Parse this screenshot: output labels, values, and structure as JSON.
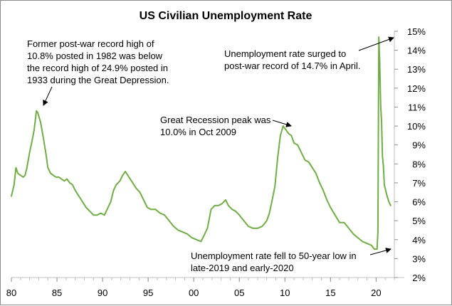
{
  "chart_data": {
    "type": "line",
    "title": "US Civilian Unemployment Rate",
    "xlabel": "",
    "ylabel": "",
    "xlim": [
      1980,
      2022
    ],
    "ylim": [
      2,
      15
    ],
    "x_ticks": [
      1980,
      1985,
      1990,
      1995,
      2000,
      2005,
      2010,
      2015,
      2020
    ],
    "x_tick_labels": [
      "80",
      "85",
      "90",
      "95",
      "00",
      "05",
      "10",
      "15",
      "20"
    ],
    "y_ticks": [
      2,
      3,
      4,
      5,
      6,
      7,
      8,
      9,
      10,
      11,
      12,
      13,
      14,
      15
    ],
    "y_tick_labels": [
      "2%",
      "3%",
      "4%",
      "5%",
      "6%",
      "7%",
      "8%",
      "9%",
      "10%",
      "11%",
      "12%",
      "13%",
      "14%",
      "15%"
    ],
    "grid": false,
    "line_color": "#70ad47",
    "series": [
      {
        "name": "Unemployment Rate",
        "x": [
          1980.0,
          1980.3,
          1980.5,
          1980.7,
          1981.0,
          1981.3,
          1981.5,
          1981.7,
          1982.0,
          1982.3,
          1982.5,
          1982.75,
          1982.9,
          1983.2,
          1983.5,
          1983.8,
          1984.0,
          1984.3,
          1984.6,
          1984.9,
          1985.2,
          1985.5,
          1985.8,
          1986.1,
          1986.4,
          1986.7,
          1987.0,
          1987.4,
          1987.8,
          1988.2,
          1988.6,
          1989.0,
          1989.4,
          1989.8,
          1990.2,
          1990.5,
          1990.9,
          1991.2,
          1991.5,
          1991.9,
          1992.2,
          1992.5,
          1992.9,
          1993.3,
          1993.7,
          1994.1,
          1994.5,
          1994.9,
          1995.3,
          1995.8,
          1996.3,
          1996.8,
          1997.3,
          1997.8,
          1998.3,
          1998.8,
          1999.3,
          1999.8,
          2000.3,
          2000.8,
          2001.2,
          2001.5,
          2001.9,
          2002.3,
          2002.7,
          2003.1,
          2003.5,
          2003.8,
          2004.2,
          2004.6,
          2005.0,
          2005.5,
          2006.0,
          2006.5,
          2007.0,
          2007.5,
          2008.0,
          2008.3,
          2008.6,
          2008.9,
          2009.2,
          2009.5,
          2009.8,
          2010.1,
          2010.4,
          2010.7,
          2011.0,
          2011.4,
          2011.8,
          2012.2,
          2012.6,
          2013.0,
          2013.4,
          2013.8,
          2014.2,
          2014.6,
          2015.0,
          2015.5,
          2016.0,
          2016.5,
          2017.0,
          2017.5,
          2018.0,
          2018.5,
          2019.0,
          2019.5,
          2019.8,
          2020.1,
          2020.2,
          2020.3,
          2020.4,
          2020.5,
          2020.6,
          2020.7,
          2020.8,
          2020.9,
          2021.0,
          2021.2,
          2021.4,
          2021.5,
          2021.6
        ],
        "values": [
          6.3,
          6.9,
          7.8,
          7.5,
          7.4,
          7.3,
          7.4,
          7.8,
          8.6,
          9.3,
          9.8,
          10.8,
          10.7,
          10.2,
          9.4,
          8.5,
          7.8,
          7.5,
          7.4,
          7.3,
          7.3,
          7.2,
          7.1,
          7.2,
          7.0,
          6.9,
          6.6,
          6.3,
          6.0,
          5.7,
          5.5,
          5.3,
          5.3,
          5.4,
          5.3,
          5.6,
          6.0,
          6.6,
          6.9,
          7.1,
          7.4,
          7.6,
          7.3,
          7.0,
          6.7,
          6.5,
          6.1,
          5.7,
          5.6,
          5.6,
          5.4,
          5.3,
          5.0,
          4.7,
          4.5,
          4.4,
          4.3,
          4.1,
          4.0,
          3.9,
          4.3,
          4.6,
          5.6,
          5.8,
          5.8,
          5.9,
          6.1,
          5.8,
          5.6,
          5.5,
          5.3,
          5.0,
          4.7,
          4.6,
          4.6,
          4.7,
          5.0,
          5.4,
          6.1,
          6.8,
          8.3,
          9.5,
          10.0,
          9.8,
          9.6,
          9.5,
          9.1,
          9.0,
          8.6,
          8.2,
          8.1,
          7.8,
          7.5,
          7.0,
          6.6,
          6.1,
          5.7,
          5.3,
          4.9,
          4.9,
          4.6,
          4.3,
          4.1,
          3.9,
          3.8,
          3.7,
          3.5,
          3.5,
          4.4,
          14.7,
          13.3,
          11.1,
          10.2,
          8.4,
          7.9,
          6.9,
          6.7,
          6.3,
          6.0,
          5.9,
          5.8
        ]
      }
    ],
    "annotations": [
      {
        "lines": [
          "Former post-war record high of",
          "10.8% posted in 1982  was below",
          "the record high of 24.9% posted in",
          "1933  during the Great Depression."
        ]
      },
      {
        "lines": [
          "Unemployment rate surged to",
          "post-war record of 14.7% in April."
        ]
      },
      {
        "lines": [
          "Great Recession peak was",
          "10.0%  in Oct 2009"
        ]
      },
      {
        "lines": [
          "Unemployment rate fell to 50-year low in",
          "late-2019 and early-2020"
        ]
      }
    ]
  }
}
